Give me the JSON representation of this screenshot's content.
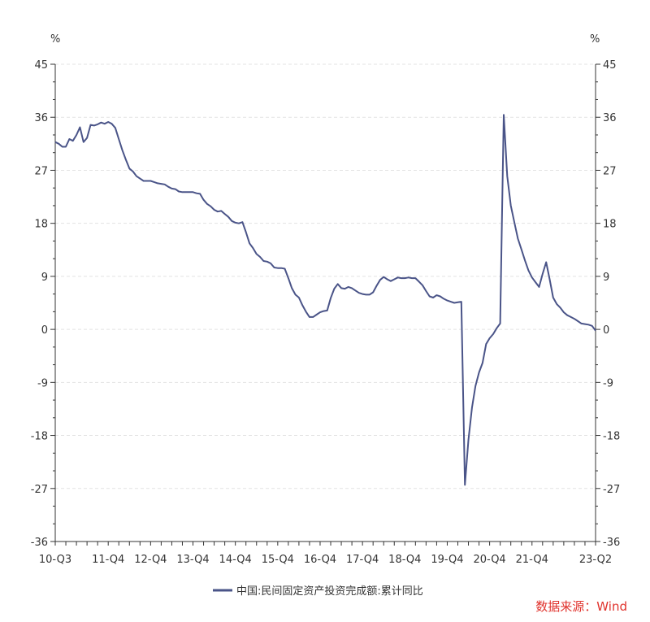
{
  "chart_data": {
    "type": "line",
    "left_unit": "%",
    "right_unit": "%",
    "ylim": [
      -36,
      45
    ],
    "y_ticks": [
      45,
      36,
      27,
      18,
      9,
      0,
      -9,
      -18,
      -27,
      -36
    ],
    "grid": true,
    "x_tick_labels": [
      "10-Q3",
      "11-Q4",
      "12-Q4",
      "13-Q4",
      "14-Q4",
      "15-Q4",
      "16-Q4",
      "17-Q4",
      "18-Q4",
      "19-Q4",
      "20-Q4",
      "21-Q4",
      "23-Q2"
    ],
    "x_range": [
      "2010-09",
      "2023-06"
    ],
    "series": [
      {
        "name": "中国:民间固定资产投资完成额:累计同比",
        "color": "#4a5488",
        "points": [
          [
            "2010-09",
            31.8
          ],
          [
            "2010-10",
            31.5
          ],
          [
            "2010-11",
            31.0
          ],
          [
            "2010-12",
            31.0
          ],
          [
            "2011-01",
            32.3
          ],
          [
            "2011-02",
            32.0
          ],
          [
            "2011-03",
            33.0
          ],
          [
            "2011-04",
            34.3
          ],
          [
            "2011-05",
            31.8
          ],
          [
            "2011-06",
            32.5
          ],
          [
            "2011-07",
            34.7
          ],
          [
            "2011-08",
            34.6
          ],
          [
            "2011-09",
            34.8
          ],
          [
            "2011-10",
            35.1
          ],
          [
            "2011-11",
            34.9
          ],
          [
            "2011-12",
            35.2
          ],
          [
            "2012-01",
            34.9
          ],
          [
            "2012-02",
            34.2
          ],
          [
            "2012-03",
            32.3
          ],
          [
            "2012-04",
            30.4
          ],
          [
            "2012-05",
            28.8
          ],
          [
            "2012-06",
            27.3
          ],
          [
            "2012-07",
            26.8
          ],
          [
            "2012-08",
            26.0
          ],
          [
            "2012-09",
            25.6
          ],
          [
            "2012-10",
            25.2
          ],
          [
            "2012-11",
            25.2
          ],
          [
            "2012-12",
            25.2
          ],
          [
            "2013-01",
            25.0
          ],
          [
            "2013-02",
            24.8
          ],
          [
            "2013-03",
            24.7
          ],
          [
            "2013-04",
            24.6
          ],
          [
            "2013-05",
            24.2
          ],
          [
            "2013-06",
            23.9
          ],
          [
            "2013-07",
            23.8
          ],
          [
            "2013-08",
            23.4
          ],
          [
            "2013-09",
            23.3
          ],
          [
            "2013-10",
            23.3
          ],
          [
            "2013-11",
            23.3
          ],
          [
            "2013-12",
            23.3
          ],
          [
            "2014-01",
            23.1
          ],
          [
            "2014-02",
            23.0
          ],
          [
            "2014-03",
            22.0
          ],
          [
            "2014-04",
            21.3
          ],
          [
            "2014-05",
            20.9
          ],
          [
            "2014-06",
            20.3
          ],
          [
            "2014-07",
            20.0
          ],
          [
            "2014-08",
            20.1
          ],
          [
            "2014-09",
            19.6
          ],
          [
            "2014-10",
            19.1
          ],
          [
            "2014-11",
            18.4
          ],
          [
            "2014-12",
            18.1
          ],
          [
            "2015-01",
            18.0
          ],
          [
            "2015-02",
            18.2
          ],
          [
            "2015-03",
            16.5
          ],
          [
            "2015-04",
            14.6
          ],
          [
            "2015-05",
            13.8
          ],
          [
            "2015-06",
            12.8
          ],
          [
            "2015-07",
            12.3
          ],
          [
            "2015-08",
            11.6
          ],
          [
            "2015-09",
            11.5
          ],
          [
            "2015-10",
            11.2
          ],
          [
            "2015-11",
            10.5
          ],
          [
            "2015-12",
            10.4
          ],
          [
            "2016-01",
            10.4
          ],
          [
            "2016-02",
            10.3
          ],
          [
            "2016-03",
            8.7
          ],
          [
            "2016-04",
            7.0
          ],
          [
            "2016-05",
            5.9
          ],
          [
            "2016-06",
            5.4
          ],
          [
            "2016-07",
            4.1
          ],
          [
            "2016-08",
            3.0
          ],
          [
            "2016-09",
            2.1
          ],
          [
            "2016-10",
            2.1
          ],
          [
            "2016-11",
            2.5
          ],
          [
            "2016-12",
            2.9
          ],
          [
            "2017-01",
            3.1
          ],
          [
            "2017-02",
            3.2
          ],
          [
            "2017-03",
            5.3
          ],
          [
            "2017-04",
            6.9
          ],
          [
            "2017-05",
            7.7
          ],
          [
            "2017-06",
            7.0
          ],
          [
            "2017-07",
            6.9
          ],
          [
            "2017-08",
            7.2
          ],
          [
            "2017-09",
            7.0
          ],
          [
            "2017-10",
            6.6
          ],
          [
            "2017-11",
            6.2
          ],
          [
            "2017-12",
            6.0
          ],
          [
            "2018-01",
            5.9
          ],
          [
            "2018-02",
            5.9
          ],
          [
            "2018-03",
            6.3
          ],
          [
            "2018-04",
            7.4
          ],
          [
            "2018-05",
            8.4
          ],
          [
            "2018-06",
            8.9
          ],
          [
            "2018-07",
            8.5
          ],
          [
            "2018-08",
            8.2
          ],
          [
            "2018-09",
            8.5
          ],
          [
            "2018-10",
            8.8
          ],
          [
            "2018-11",
            8.7
          ],
          [
            "2018-12",
            8.7
          ],
          [
            "2019-01",
            8.8
          ],
          [
            "2019-02",
            8.7
          ],
          [
            "2019-03",
            8.7
          ],
          [
            "2019-04",
            8.1
          ],
          [
            "2019-05",
            7.5
          ],
          [
            "2019-06",
            6.5
          ],
          [
            "2019-07",
            5.6
          ],
          [
            "2019-08",
            5.4
          ],
          [
            "2019-09",
            5.8
          ],
          [
            "2019-10",
            5.6
          ],
          [
            "2019-11",
            5.2
          ],
          [
            "2019-12",
            4.9
          ],
          [
            "2020-01",
            4.7
          ],
          [
            "2020-02",
            4.5
          ],
          [
            "2020-03",
            4.6
          ],
          [
            "2020-04",
            4.7
          ],
          [
            "2020-05",
            -26.4
          ],
          [
            "2020-06",
            -18.8
          ],
          [
            "2020-07",
            -13.3
          ],
          [
            "2020-08",
            -9.6
          ],
          [
            "2020-09",
            -7.3
          ],
          [
            "2020-10",
            -5.7
          ],
          [
            "2020-11",
            -2.5
          ],
          [
            "2020-12",
            -1.5
          ],
          [
            "2021-01",
            -0.8
          ],
          [
            "2021-02",
            0.2
          ],
          [
            "2021-03",
            1.0
          ],
          [
            "2021-04",
            36.4
          ],
          [
            "2021-05",
            26.0
          ],
          [
            "2021-06",
            21.0
          ],
          [
            "2021-07",
            18.2
          ],
          [
            "2021-08",
            15.4
          ],
          [
            "2021-09",
            13.6
          ],
          [
            "2021-10",
            11.7
          ],
          [
            "2021-11",
            10.0
          ],
          [
            "2021-12",
            8.8
          ],
          [
            "2022-01",
            8.0
          ],
          [
            "2022-02",
            7.2
          ],
          [
            "2022-03",
            9.4
          ],
          [
            "2022-04",
            11.4
          ],
          [
            "2022-05",
            8.5
          ],
          [
            "2022-06",
            5.4
          ],
          [
            "2022-07",
            4.3
          ],
          [
            "2022-08",
            3.7
          ],
          [
            "2022-09",
            2.9
          ],
          [
            "2022-10",
            2.4
          ],
          [
            "2022-11",
            2.1
          ],
          [
            "2022-12",
            1.8
          ],
          [
            "2023-01",
            1.4
          ],
          [
            "2023-02",
            1.0
          ],
          [
            "2023-03",
            0.9
          ],
          [
            "2023-04",
            0.8
          ],
          [
            "2023-05",
            0.6
          ],
          [
            "2023-06",
            -0.2
          ]
        ]
      }
    ]
  },
  "legend": {
    "label": "中国:民间固定资产投资完成额:累计同比"
  },
  "source_text": "数据来源：Wind"
}
